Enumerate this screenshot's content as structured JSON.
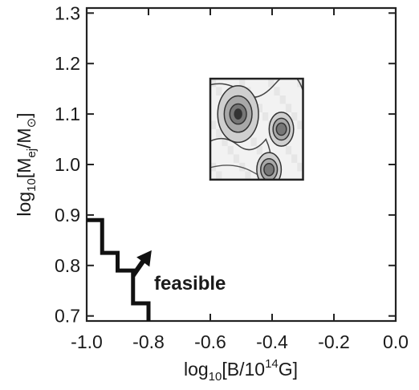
{
  "chart_data": {
    "type": "contour",
    "xlabel": {
      "base": "log",
      "sub": "10",
      "mid": "[B/10",
      "sup": "14",
      "tail": "G]"
    },
    "ylabel": {
      "base": "log",
      "sub1": "10",
      "mid": "[M",
      "sub2": "ej",
      "mid2": "/M",
      "sub3": "⊙",
      "tail": "]"
    },
    "xlim": [
      -1.0,
      0.0
    ],
    "ylim": [
      0.69,
      1.31
    ],
    "xticks": [
      -1.0,
      -0.8,
      -0.6,
      -0.4,
      -0.2,
      0.0
    ],
    "xtick_labels": [
      "-1.0",
      "-0.8",
      "-0.6",
      "-0.4",
      "-0.2",
      "0.0"
    ],
    "yticks": [
      0.7,
      0.8,
      0.9,
      1.0,
      1.1,
      1.2,
      1.3
    ],
    "ytick_labels": [
      "0.7",
      "0.8",
      "0.9",
      "1.0",
      "1.1",
      "1.2",
      "1.3"
    ],
    "grid": false,
    "boundary_line": {
      "x": [
        -1.0,
        -0.95,
        -0.95,
        -0.9,
        -0.9,
        -0.85,
        -0.85,
        -0.8,
        -0.8
      ],
      "y": [
        0.89,
        0.89,
        0.825,
        0.825,
        0.79,
        0.79,
        0.725,
        0.725,
        0.69
      ]
    },
    "annotation": {
      "text": "feasible",
      "arrow_from": [
        -0.85,
        0.78
      ],
      "arrow_to": [
        -0.79,
        0.83
      ]
    },
    "inset": {
      "x_range": [
        -0.6,
        -0.3
      ],
      "y_range": [
        0.97,
        1.17
      ],
      "contour_peaks": [
        {
          "x": -0.51,
          "y": 1.1,
          "level": 4
        },
        {
          "x": -0.37,
          "y": 1.07,
          "level": 3
        },
        {
          "x": -0.41,
          "y": 0.99,
          "level": 3
        }
      ]
    }
  }
}
